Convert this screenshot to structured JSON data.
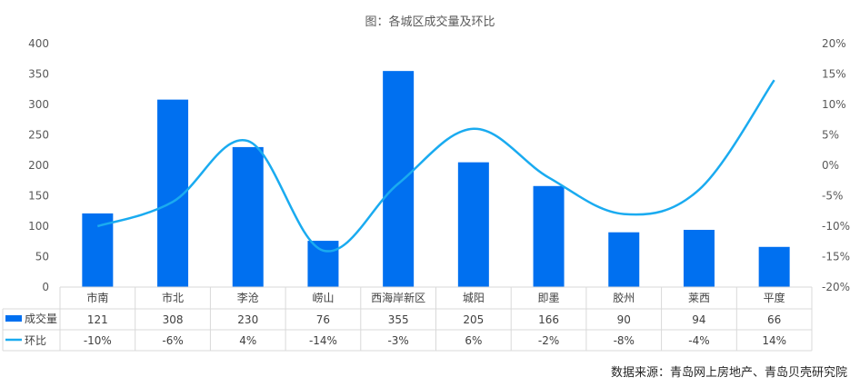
{
  "chart_data": {
    "type": "bar",
    "title": "图：各城区成交量及环比",
    "categories": [
      "市南",
      "市北",
      "李沧",
      "崂山",
      "西海岸新区",
      "城阳",
      "即墨",
      "胶州",
      "莱西",
      "平度"
    ],
    "series": [
      {
        "name": "成交量",
        "type": "bar",
        "axis": "left",
        "color": "#0070f0",
        "values": [
          121,
          308,
          230,
          76,
          355,
          205,
          166,
          90,
          94,
          66
        ],
        "labels": [
          "121",
          "308",
          "230",
          "76",
          "355",
          "205",
          "166",
          "90",
          "94",
          "66"
        ]
      },
      {
        "name": "环比",
        "type": "line",
        "axis": "right",
        "color": "#1aabf0",
        "smooth": true,
        "values": [
          -10,
          -6,
          4,
          -14,
          -3,
          6,
          -2,
          -8,
          -4,
          14
        ],
        "labels": [
          "-10%",
          "-6%",
          "4%",
          "-14%",
          "-3%",
          "6%",
          "-2%",
          "-8%",
          "-4%",
          "14%"
        ]
      }
    ],
    "ylim": [
      0,
      400
    ],
    "yticks": [
      "0",
      "50",
      "100",
      "150",
      "200",
      "250",
      "300",
      "350",
      "400"
    ],
    "y2lim": [
      -20,
      20
    ],
    "y2ticks": [
      "-20%",
      "-15%",
      "-10%",
      "-5%",
      "0%",
      "5%",
      "10%",
      "15%",
      "20%"
    ],
    "grid": false,
    "legend": "data-table"
  },
  "source": "数据来源：青岛网上房地产、青岛贝壳研究院"
}
